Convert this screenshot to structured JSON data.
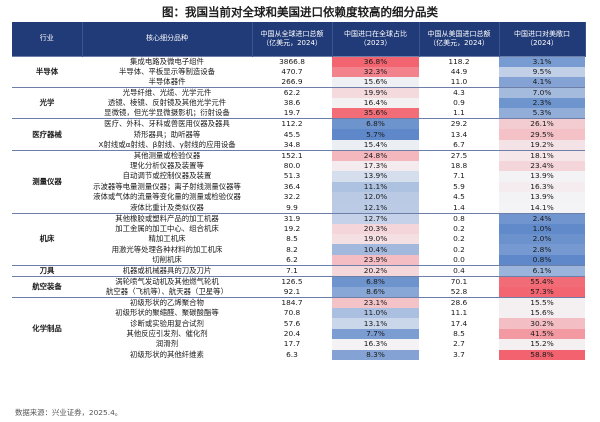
{
  "title": "图：我国当前对全球和美国进口依赖度较高的细分品类",
  "headers": {
    "industry": "行业",
    "product": "核心细分品种",
    "world_import": "中国从全球进口总额（亿美元，2024）",
    "world_share": "中国进口在全球占比（2023）",
    "us_import": "中国从美国进口总额（亿美元，2024）",
    "us_ratio": "中国进口对美敞口（2024）"
  },
  "groups": [
    {
      "name": "半导体",
      "rows": [
        {
          "product": "集成电路及微电子组件",
          "world_import": "3866.8",
          "world_share": "36.8%",
          "us_import": "118.2",
          "us_ratio": "3.1%"
        },
        {
          "product": "半导体、平板显示等制造设备",
          "world_import": "470.7",
          "world_share": "32.3%",
          "us_import": "44.9",
          "us_ratio": "9.5%"
        },
        {
          "product": "半导体器件",
          "world_import": "266.9",
          "world_share": "15.6%",
          "us_import": "11.0",
          "us_ratio": "4.1%"
        }
      ]
    },
    {
      "name": "光学",
      "rows": [
        {
          "product": "光导纤维、光缆、光学元件",
          "world_import": "62.2",
          "world_share": "19.9%",
          "us_import": "4.3",
          "us_ratio": "7.0%"
        },
        {
          "product": "透镜、棱镜、反射镜及其他光学元件",
          "world_import": "38.6",
          "world_share": "16.4%",
          "us_import": "0.9",
          "us_ratio": "2.3%"
        },
        {
          "product": "显微镜，但光学显微摄影机；衍射设备",
          "world_import": "19.7",
          "world_share": "35.6%",
          "us_import": "1.1",
          "us_ratio": "5.3%"
        }
      ]
    },
    {
      "name": "医疗器械",
      "rows": [
        {
          "product": "医疗、外科、牙科或兽医用仪器及器具",
          "world_import": "112.2",
          "world_share": "6.8%",
          "us_import": "29.2",
          "us_ratio": "26.1%"
        },
        {
          "product": "矫形器具；助听器等",
          "world_import": "45.5",
          "world_share": "5.7%",
          "us_import": "13.4",
          "us_ratio": "29.5%"
        },
        {
          "product": "X射线或α射线、β射线、γ射线的应用设备",
          "world_import": "34.8",
          "world_share": "15.4%",
          "us_import": "6.7",
          "us_ratio": "19.2%"
        }
      ]
    },
    {
      "name": "测量仪器",
      "rows": [
        {
          "product": "其他测量或检验仪器",
          "world_import": "152.1",
          "world_share": "24.8%",
          "us_import": "27.5",
          "us_ratio": "18.1%"
        },
        {
          "product": "理化分析仪器及装置等",
          "world_import": "80.0",
          "world_share": "17.3%",
          "us_import": "18.8",
          "us_ratio": "23.4%"
        },
        {
          "product": "自动调节或控制仪器及装置",
          "world_import": "51.3",
          "world_share": "13.9%",
          "us_import": "7.1",
          "us_ratio": "13.9%"
        },
        {
          "product": "示波器等电量测量仪器；离子射线测量仪器等",
          "world_import": "36.4",
          "world_share": "11.1%",
          "us_import": "5.9",
          "us_ratio": "16.3%"
        },
        {
          "product": "液体或气体的流量等变化量的测量或检验仪器",
          "world_import": "32.2",
          "world_share": "12.0%",
          "us_import": "4.5",
          "us_ratio": "13.9%"
        },
        {
          "product": "液体比重计及类似仪器",
          "world_import": "9.9",
          "world_share": "12.1%",
          "us_import": "1.4",
          "us_ratio": "14.1%"
        }
      ]
    },
    {
      "name": "机床",
      "rows": [
        {
          "product": "其他橡胶或塑料产品的加工机器",
          "world_import": "31.9",
          "world_share": "12.7%",
          "us_import": "0.8",
          "us_ratio": "2.4%"
        },
        {
          "product": "加工金属的加工中心、组合机床",
          "world_import": "19.2",
          "world_share": "20.3%",
          "us_import": "0.2",
          "us_ratio": "1.0%"
        },
        {
          "product": "精加工机床",
          "world_import": "8.5",
          "world_share": "19.0%",
          "us_import": "0.2",
          "us_ratio": "2.0%"
        },
        {
          "product": "用激光等处理各种材料的加工机床",
          "world_import": "8.2",
          "world_share": "10.4%",
          "us_import": "0.2",
          "us_ratio": "2.8%"
        },
        {
          "product": "切削机床",
          "world_import": "6.2",
          "world_share": "23.9%",
          "us_import": "0.0",
          "us_ratio": "0.8%"
        }
      ]
    },
    {
      "name": "刀具",
      "rows": [
        {
          "product": "机器或机械器具的刀及刀片",
          "world_import": "7.1",
          "world_share": "20.2%",
          "us_import": "0.4",
          "us_ratio": "6.1%"
        }
      ]
    },
    {
      "name": "航空装备",
      "rows": [
        {
          "product": "涡轮喷气发动机及其他燃气轮机",
          "world_import": "126.5",
          "world_share": "6.8%",
          "us_import": "70.1",
          "us_ratio": "55.4%"
        },
        {
          "product": "航空器（飞机等）、航天器（卫星等）",
          "world_import": "92.1",
          "world_share": "8.6%",
          "us_import": "52.8",
          "us_ratio": "57.3%"
        }
      ]
    },
    {
      "name": "化学制品",
      "rows": [
        {
          "product": "初级形状的乙烯聚合物",
          "world_import": "184.7",
          "world_share": "23.1%",
          "us_import": "28.6",
          "us_ratio": "15.5%"
        },
        {
          "product": "初级形状的聚缩醛、聚碳酸酯等",
          "world_import": "70.8",
          "world_share": "11.0%",
          "us_import": "11.1",
          "us_ratio": "15.6%"
        },
        {
          "product": "诊断或实验用复合试剂",
          "world_import": "57.6",
          "world_share": "13.1%",
          "us_import": "17.4",
          "us_ratio": "30.2%"
        },
        {
          "product": "其他反应引发剂、催化剂",
          "world_import": "20.4",
          "world_share": "7.7%",
          "us_import": "8.5",
          "us_ratio": "41.5%"
        },
        {
          "product": "润滑剂",
          "world_import": "17.7",
          "world_share": "16.3%",
          "us_import": "2.7",
          "us_ratio": "15.2%"
        },
        {
          "product": "初级形状的其他纤维素",
          "world_import": "6.3",
          "world_share": "8.3%",
          "us_import": "3.7",
          "us_ratio": "58.8%"
        }
      ]
    }
  ],
  "source": "数据来源：兴业证券，2025.4。"
}
